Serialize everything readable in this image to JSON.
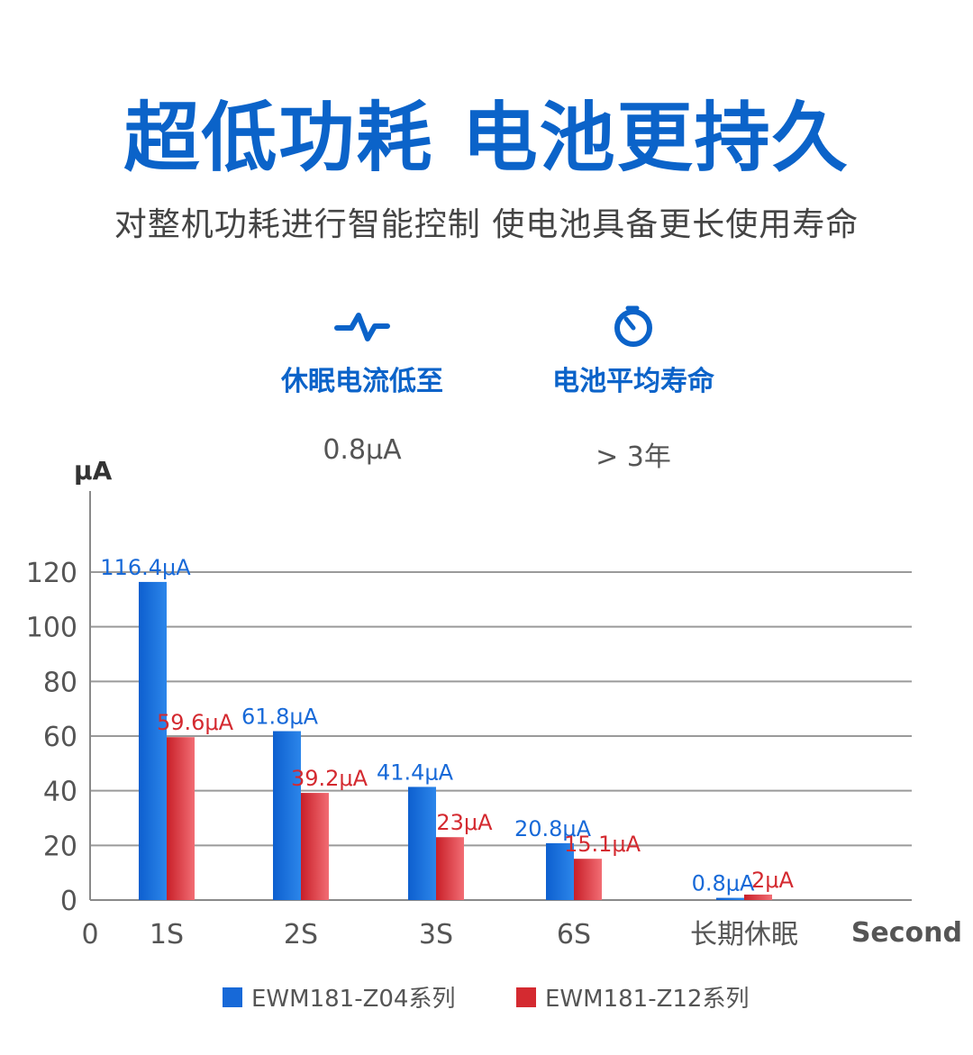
{
  "header": {
    "title": "超低功耗 电池更持久",
    "subtitle": "对整机功耗进行智能控制 使电池具备更长使用寿命"
  },
  "features": [
    {
      "icon": "pulse-wave-icon",
      "label": "休眠电流低至",
      "value": "0.8μA"
    },
    {
      "icon": "stopwatch-icon",
      "label": "电池平均寿命",
      "value": "> 3年"
    }
  ],
  "colors": {
    "accent": "#0b63c9",
    "series1": "#1769d8",
    "series2": "#d42a30"
  },
  "chart_data": {
    "type": "bar",
    "ylabel": "μA",
    "xlabel": "Second",
    "x_origin_label": "0",
    "ylim": [
      0,
      120
    ],
    "yticks": [
      0,
      20,
      40,
      60,
      80,
      100,
      120
    ],
    "grid": true,
    "categories": [
      "1S",
      "2S",
      "3S",
      "6S",
      "长期休眠"
    ],
    "series": [
      {
        "name": "EWM181-Z04系列",
        "values": [
          116.4,
          61.8,
          41.4,
          20.8,
          0.8
        ],
        "labels": [
          "116.4μA",
          "61.8μA",
          "41.4μA",
          "20.8μA",
          "0.8μA"
        ]
      },
      {
        "name": "EWM181-Z12系列",
        "values": [
          59.6,
          39.2,
          23,
          15.1,
          2
        ],
        "labels": [
          "59.6μA",
          "39.2μA",
          "23μA",
          "15.1μA",
          "2μA"
        ]
      }
    ],
    "legend": "bottom"
  }
}
